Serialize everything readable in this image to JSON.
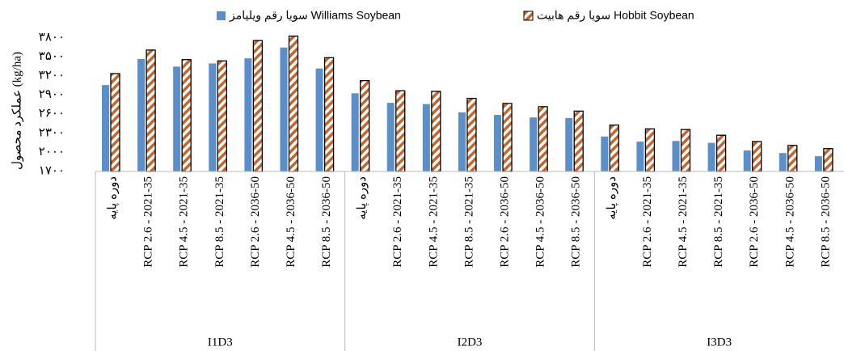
{
  "chart_data": {
    "type": "bar",
    "ylabel": "عملکرد محصول (kg/ha)",
    "ylim": [
      1700,
      3800
    ],
    "yticks": [
      {
        "value": 1700,
        "label": "۱۷۰۰"
      },
      {
        "value": 2000,
        "label": "۲۰۰۰"
      },
      {
        "value": 2300,
        "label": "۲۳۰۰"
      },
      {
        "value": 2600,
        "label": "۲۶۰۰"
      },
      {
        "value": 2900,
        "label": "۲۹۰۰"
      },
      {
        "value": 3200,
        "label": "۳۲۰۰"
      },
      {
        "value": 3500,
        "label": "۳۵۰۰"
      },
      {
        "value": 3800,
        "label": "۳۸۰۰"
      }
    ],
    "groups": [
      "I1D3",
      "I2D3",
      "I3D3"
    ],
    "categories": [
      "دوره پایه",
      "RCP 2.6 - 2021-35",
      "RCP 4.5 - 2021-35",
      "RCP 8.5 - 2021-35",
      "RCP 2.6 - 2036-50",
      "RCP 4.5 - 2036-50",
      "RCP 8.5 - 2036-50",
      "دوره پایه",
      "RCP 2.6 - 2021-35",
      "RCP 4.5 - 2021-35",
      "RCP 8.5 - 2021-35",
      "RCP 2.6 - 2036-50",
      "RCP 4.5 - 2036-50",
      "RCP 8.5 - 2036-50",
      "دوره پایه",
      "RCP 2.6 - 2021-35",
      "RCP 4.5 - 2021-35",
      "RCP 8.5 - 2021-35",
      "RCP 2.6 - 2036-50",
      "RCP 4.5 - 2036-50",
      "RCP 8.5 - 2036-50"
    ],
    "series": [
      {
        "name": "سویا رقم ویلیامز Williams Soybean",
        "color": "#5b8fc9",
        "pattern": "solid",
        "values": [
          3060,
          3470,
          3350,
          3400,
          3480,
          3650,
          3320,
          2930,
          2780,
          2760,
          2630,
          2590,
          2550,
          2540,
          2250,
          2170,
          2180,
          2150,
          2030,
          1990,
          1940
        ]
      },
      {
        "name": "سویا رقم هابیت Hobbit Soybean",
        "color": "#c8642a",
        "pattern": "hatch",
        "values": [
          3240,
          3610,
          3460,
          3440,
          3760,
          3830,
          3490,
          3130,
          2970,
          2960,
          2850,
          2770,
          2720,
          2650,
          2430,
          2370,
          2360,
          2270,
          2170,
          2110,
          2060
        ]
      }
    ]
  }
}
